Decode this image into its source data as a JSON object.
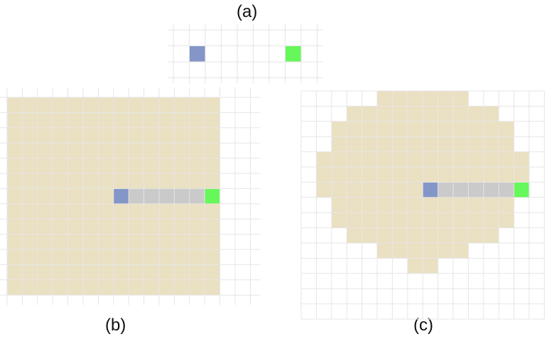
{
  "labels": {
    "a": "(a)",
    "b": "(b)",
    "c": "(c)"
  },
  "colors": {
    "grid_line": "#e6e6e6",
    "background_cell": "#ffffff",
    "region_fill": "#eae0c2",
    "start_cell": "#8496c8",
    "goal_cell": "#66f75a",
    "path_cell": "#cacaca"
  },
  "panels": {
    "a": {
      "start": [
        1,
        1
      ],
      "goal": [
        7,
        1
      ],
      "path": []
    },
    "b": {
      "start": [
        7,
        6
      ],
      "goal": [
        13,
        6
      ],
      "path": [
        [
          8,
          6
        ],
        [
          9,
          6
        ],
        [
          10,
          6
        ],
        [
          11,
          6
        ],
        [
          12,
          6
        ]
      ],
      "region_shape": "square"
    },
    "c": {
      "start": [
        8,
        6
      ],
      "goal": [
        14,
        6
      ],
      "path": [
        [
          9,
          6
        ],
        [
          10,
          6
        ],
        [
          11,
          6
        ],
        [
          12,
          6
        ],
        [
          13,
          6
        ]
      ],
      "region_shape": "disc",
      "region_rows": [
        [
          5,
          11
        ],
        [
          3,
          13
        ],
        [
          2,
          14
        ],
        [
          2,
          14
        ],
        [
          1,
          15
        ],
        [
          1,
          15
        ],
        [
          1,
          15
        ],
        [
          2,
          14
        ],
        [
          2,
          14
        ],
        [
          3,
          13
        ],
        [
          5,
          11
        ],
        [
          7,
          9
        ]
      ]
    }
  }
}
